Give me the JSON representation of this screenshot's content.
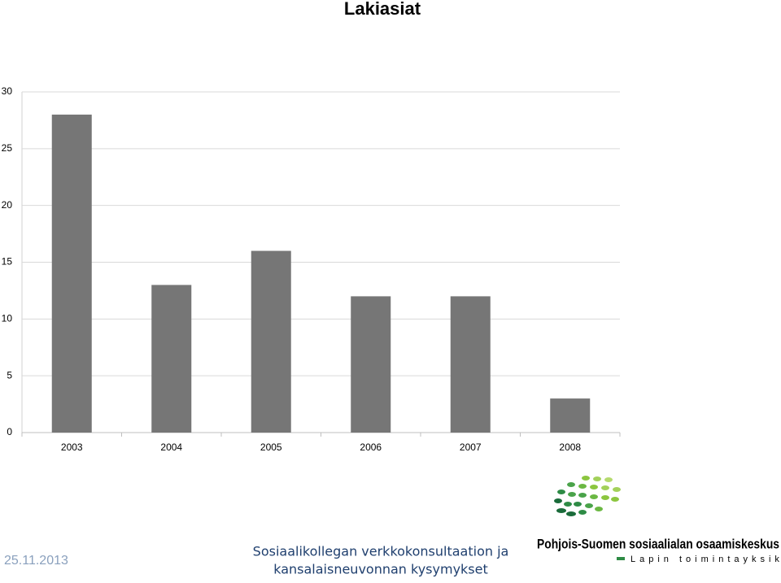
{
  "chart_data": {
    "type": "bar",
    "title": "Lakiasiat",
    "categories": [
      "2003",
      "2004",
      "2005",
      "2006",
      "2007",
      "2008"
    ],
    "values": [
      28,
      13,
      16,
      12,
      12,
      3
    ],
    "color": "#767676",
    "ylim": [
      0,
      30
    ],
    "yticks": [
      0,
      5,
      10,
      15,
      20,
      25,
      30
    ],
    "grid": true
  },
  "footer": {
    "date": "25.11.2013",
    "caption": [
      "Sosiaalikollegan verkkokonsultaation ja",
      "kansalaisneuvonnan kysymykset"
    ],
    "logo_title": "Pohjois-Suomen sosiaalialan osaamiskeskus",
    "logo_subtitle": "Lapin toimintayksikkö"
  }
}
